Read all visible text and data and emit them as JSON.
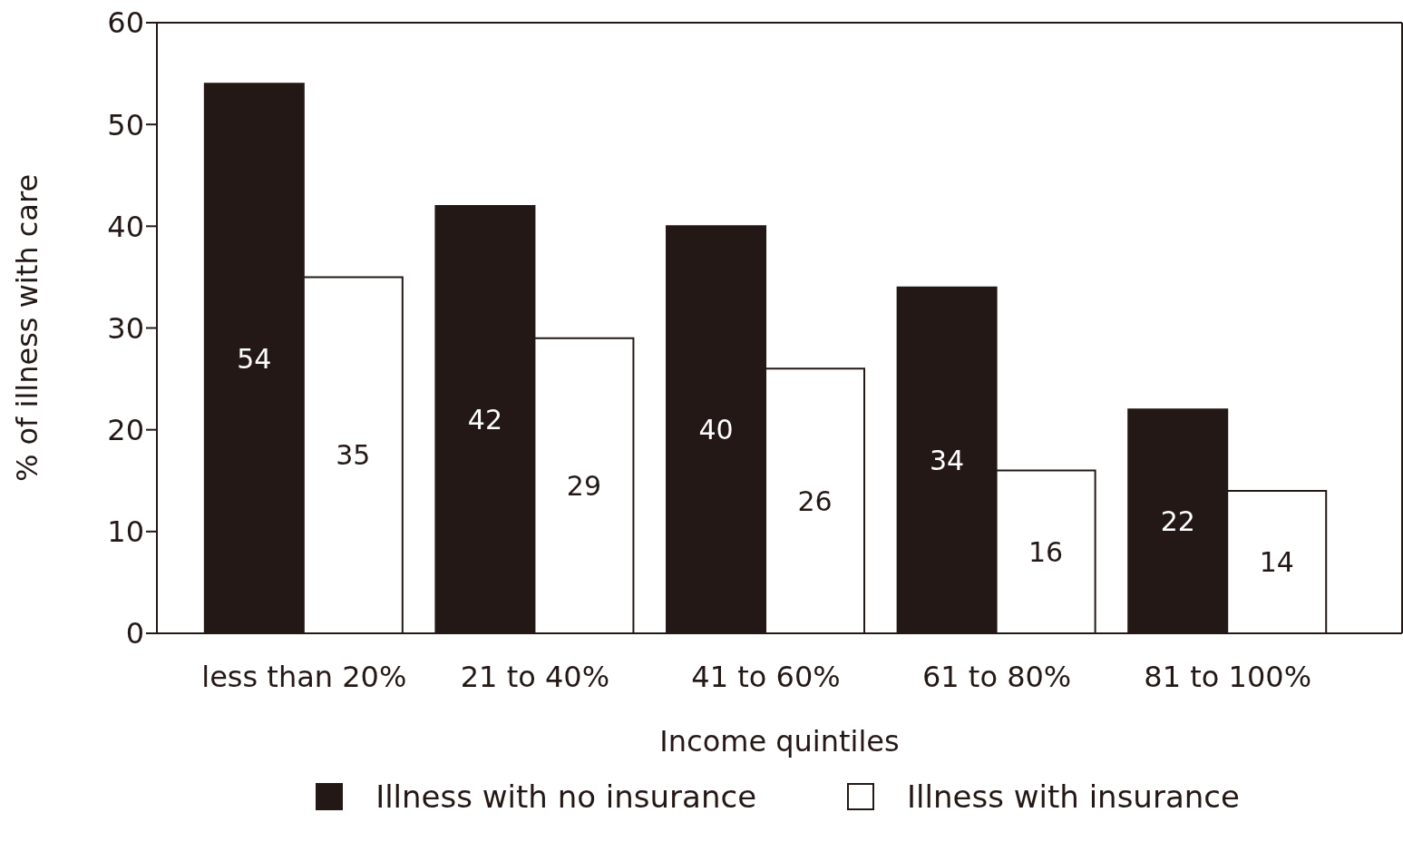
{
  "chart_data": {
    "type": "bar",
    "xlabel": "Income quintiles",
    "ylabel": "% of illness with care",
    "categories": [
      "less than 20%",
      "21 to 40%",
      "41 to 60%",
      "61 to 80%",
      "81 to 100%"
    ],
    "series": [
      {
        "name": "Illness with no insurance",
        "color": "#231815",
        "values": [
          54,
          42,
          40,
          34,
          22
        ]
      },
      {
        "name": "Illness with insurance",
        "color": "#ffffff",
        "values": [
          35,
          29,
          26,
          16,
          14
        ]
      }
    ],
    "ylim": [
      0,
      60
    ],
    "yticks": [
      0,
      10,
      20,
      30,
      40,
      50,
      60
    ],
    "legend": "bottom",
    "data_labels": true
  }
}
